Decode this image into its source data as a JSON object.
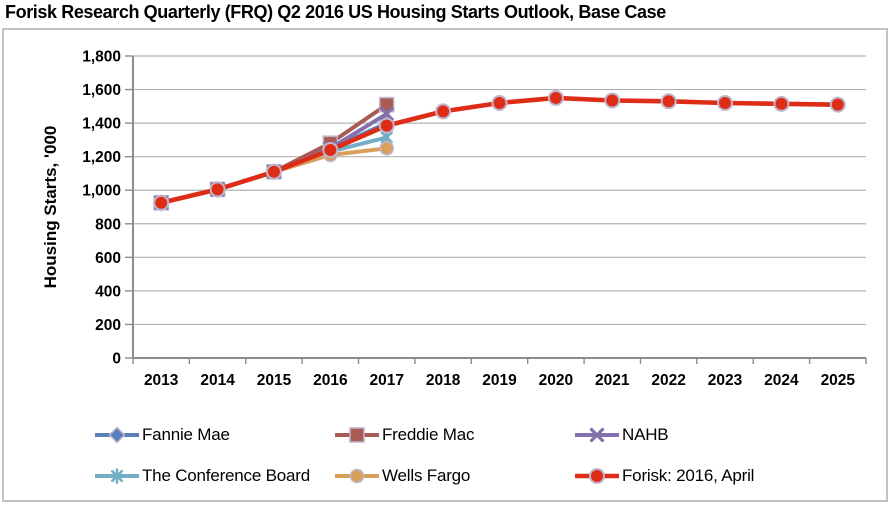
{
  "title": "Forisk Research Quarterly (FRQ) Q2 2016 US Housing Starts Outlook, Base Case",
  "chart_data": {
    "type": "line",
    "title": "Forisk Research Quarterly (FRQ) Q2 2016 US Housing Starts Outlook, Base Case",
    "xlabel": "",
    "ylabel": "Housing Starts, '000",
    "x": [
      2013,
      2014,
      2015,
      2016,
      2017,
      2018,
      2019,
      2020,
      2021,
      2022,
      2023,
      2024,
      2025
    ],
    "ylim": [
      0,
      1800
    ],
    "ytick_step": 200,
    "ytick_labels": [
      "0",
      "200",
      "400",
      "600",
      "800",
      "1,000",
      "1,200",
      "1,400",
      "1,600",
      "1,800"
    ],
    "grid": true,
    "legend_position": "bottom",
    "series": [
      {
        "name": "Fannie Mae",
        "marker": "diamond",
        "color": "#5B7FB9",
        "values": [
          925,
          1005,
          1110,
          1245,
          1400,
          null,
          null,
          null,
          null,
          null,
          null,
          null,
          null
        ]
      },
      {
        "name": "Freddie Mac",
        "marker": "square",
        "color": "#A85A53",
        "values": [
          925,
          1005,
          1110,
          1280,
          1510,
          null,
          null,
          null,
          null,
          null,
          null,
          null,
          null
        ]
      },
      {
        "name": "NAHB",
        "marker": "x",
        "color": "#8370AD",
        "values": [
          925,
          1005,
          1110,
          1250,
          1455,
          null,
          null,
          null,
          null,
          null,
          null,
          null,
          null
        ]
      },
      {
        "name": "The Conference Board",
        "marker": "asterisk",
        "color": "#72AFC4",
        "values": [
          925,
          1005,
          1110,
          1230,
          1315,
          null,
          null,
          null,
          null,
          null,
          null,
          null,
          null
        ]
      },
      {
        "name": "Wells Fargo",
        "marker": "circle",
        "color": "#D9A05C",
        "values": [
          925,
          1005,
          1110,
          1210,
          1250,
          null,
          null,
          null,
          null,
          null,
          null,
          null,
          null
        ]
      },
      {
        "name": "Forisk: 2016, April",
        "marker": "circle",
        "color": "#DE2D16",
        "values": [
          925,
          1005,
          1110,
          1240,
          1385,
          1470,
          1520,
          1550,
          1535,
          1530,
          1520,
          1515,
          1510
        ]
      }
    ]
  },
  "colors": {
    "marker_ring": "#BFB5CC",
    "gridline": "#B3B3B3",
    "axis": "#8C8C8C",
    "border": "#C2C2C2",
    "text": "#000000"
  }
}
